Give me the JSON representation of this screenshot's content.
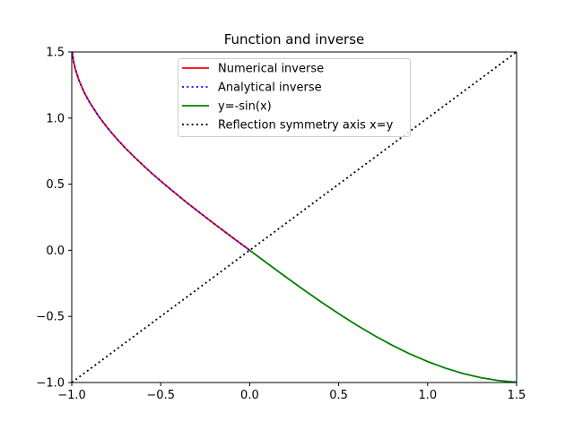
{
  "chart_data": {
    "type": "line",
    "title": "Function and inverse",
    "xlabel": "",
    "ylabel": "",
    "xlim": [
      -1.0,
      1.5
    ],
    "ylim": [
      -1.0,
      1.5
    ],
    "grid": false,
    "legend_position": "top-center",
    "x_ticks": [
      -1.0,
      -0.5,
      0.0,
      0.5,
      1.0,
      1.5
    ],
    "y_ticks": [
      -1.0,
      -0.5,
      0.0,
      0.5,
      1.0,
      1.5
    ],
    "x_tick_labels": [
      "−1.0",
      "−0.5",
      "0.0",
      "0.5",
      "1.0",
      "1.5"
    ],
    "y_tick_labels": [
      "−1.0",
      "−0.5",
      "0.0",
      "0.5",
      "1.0",
      "1.5"
    ],
    "series": [
      {
        "name": "Numerical inverse",
        "color": "#ff0000",
        "style": "solid",
        "x": [
          -0.9975,
          -0.99,
          -0.98,
          -0.96,
          -0.93,
          -0.9,
          -0.85,
          -0.8,
          -0.75,
          -0.7,
          -0.65,
          -0.6,
          -0.55,
          -0.5,
          -0.45,
          -0.4,
          -0.35,
          -0.3,
          -0.25,
          -0.2,
          -0.15,
          -0.1,
          -0.05,
          0.0
        ],
        "y": [
          1.5,
          1.429,
          1.371,
          1.287,
          1.194,
          1.12,
          1.016,
          0.927,
          0.848,
          0.775,
          0.708,
          0.644,
          0.582,
          0.524,
          0.467,
          0.412,
          0.357,
          0.305,
          0.253,
          0.201,
          0.151,
          0.1,
          0.05,
          0.0
        ]
      },
      {
        "name": "Analytical inverse",
        "color": "#0000ff",
        "style": "dotted",
        "x": [
          -0.9975,
          -0.99,
          -0.98,
          -0.96,
          -0.93,
          -0.9,
          -0.85,
          -0.8,
          -0.75,
          -0.7,
          -0.65,
          -0.6,
          -0.55,
          -0.5,
          -0.45,
          -0.4,
          -0.35,
          -0.3,
          -0.25,
          -0.2,
          -0.15,
          -0.1,
          -0.05,
          0.0
        ],
        "y": [
          1.5,
          1.429,
          1.371,
          1.287,
          1.194,
          1.12,
          1.016,
          0.927,
          0.848,
          0.775,
          0.708,
          0.644,
          0.582,
          0.524,
          0.467,
          0.412,
          0.357,
          0.305,
          0.253,
          0.201,
          0.151,
          0.1,
          0.05,
          0.0
        ]
      },
      {
        "name": "y=-sin(x)",
        "color": "#008000",
        "style": "solid",
        "x": [
          0.0,
          0.1,
          0.2,
          0.3,
          0.4,
          0.5,
          0.6,
          0.7,
          0.8,
          0.9,
          1.0,
          1.1,
          1.2,
          1.3,
          1.4,
          1.5
        ],
        "y": [
          0.0,
          -0.0998,
          -0.1987,
          -0.2955,
          -0.3894,
          -0.4794,
          -0.5646,
          -0.6442,
          -0.7174,
          -0.7833,
          -0.8415,
          -0.8912,
          -0.932,
          -0.9636,
          -0.9854,
          -0.9975
        ]
      },
      {
        "name": "Reflection symmetry axis x=y",
        "color": "#000000",
        "style": "dotted",
        "x": [
          -1.0,
          1.5
        ],
        "y": [
          -1.0,
          1.5
        ]
      }
    ]
  }
}
